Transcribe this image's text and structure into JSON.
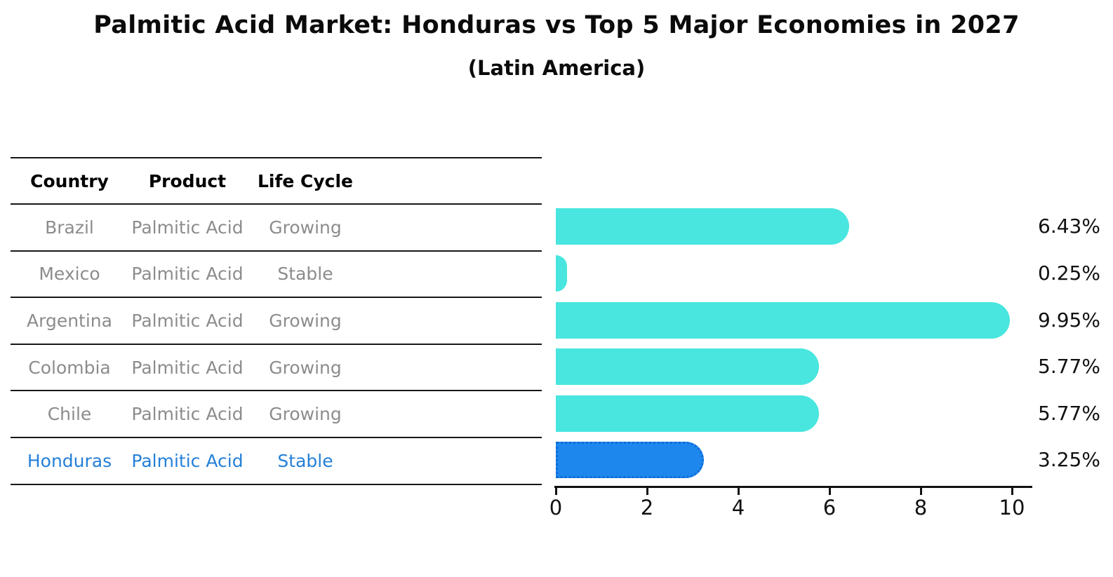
{
  "title": "Palmitic Acid Market: Honduras vs Top 5 Major Economies in 2027",
  "subtitle": "(Latin America)",
  "table": {
    "headers": [
      "Country",
      "Product",
      "Life Cycle"
    ]
  },
  "chart_data": {
    "type": "bar",
    "orientation": "horizontal",
    "title": "Palmitic Acid Market: Honduras vs Top 5 Major Economies in 2027",
    "subtitle": "(Latin America)",
    "categories": [
      "Brazil",
      "Mexico",
      "Argentina",
      "Colombia",
      "Chile",
      "Honduras"
    ],
    "products": [
      "Palmitic Acid",
      "Palmitic Acid",
      "Palmitic Acid",
      "Palmitic Acid",
      "Palmitic Acid",
      "Palmitic Acid"
    ],
    "life_cycles": [
      "Growing",
      "Stable",
      "Growing",
      "Growing",
      "Growing",
      "Stable"
    ],
    "values": [
      6.43,
      0.25,
      9.95,
      5.77,
      5.77,
      3.25
    ],
    "value_labels": [
      "6.43%",
      "0.25%",
      "9.95%",
      "5.77%",
      "5.77%",
      "3.25%"
    ],
    "highlight_category": "Honduras",
    "x_ticks": [
      0,
      2,
      4,
      6,
      8,
      10
    ],
    "xlim": [
      0,
      10.45
    ],
    "grid": false,
    "legend": false,
    "ylabel": "",
    "xlabel": ""
  },
  "colors": {
    "bar": "#48E6DE",
    "bar_highlight": "#1E87EE",
    "bar_highlight_border": "#0F6BD7",
    "highlight_text": "#2580D8",
    "cell_text": "#8C8C8C",
    "header_text": "#000000",
    "axis": "#111111"
  }
}
